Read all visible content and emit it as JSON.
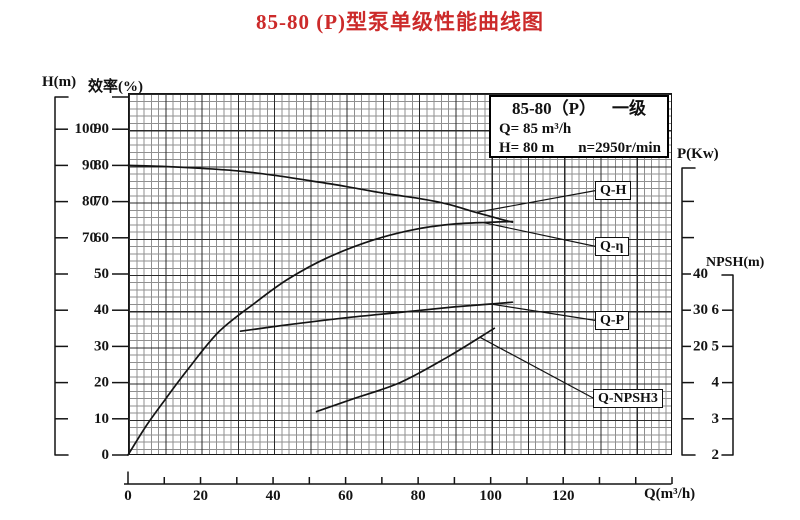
{
  "title": "85-80 (P)型泵单级性能曲线图",
  "theme": {
    "title_color": "#cc2a2a",
    "line_color": "#141414",
    "grid_minor_color": "#8f8f8f",
    "grid_major_color": "#2a2a2a"
  },
  "info_box": {
    "line1_left": "85-80（P）",
    "line1_right": "一级",
    "line2": "Q= 85 m³/h",
    "line3_left": "H= 80 m",
    "line3_right": "n=2950r/min"
  },
  "axes": {
    "h": {
      "label": "H(m)",
      "ticks": [
        "100",
        "90",
        "80",
        "70"
      ]
    },
    "eff": {
      "label": "效率(%)",
      "ticks": [
        "90",
        "80",
        "70",
        "60",
        "50",
        "40",
        "30",
        "20",
        "10",
        "0"
      ]
    },
    "p": {
      "label": "P(Kw)",
      "ticks": [
        "40",
        "30",
        "20"
      ]
    },
    "npsh": {
      "label": "NPSH(m)",
      "ticks": [
        "6",
        "5",
        "4",
        "3",
        "2"
      ]
    },
    "q": {
      "label": "Q(m³/h)",
      "ticks": [
        "0",
        "20",
        "40",
        "60",
        "80",
        "100",
        "120"
      ]
    }
  },
  "curve_labels": [
    {
      "text": "Q-H"
    },
    {
      "text": "Q-η"
    },
    {
      "text": "Q-P"
    },
    {
      "text": "Q-NPSH3"
    }
  ],
  "chart_data": {
    "type": "line",
    "title": "85-80 (P)型泵单级性能曲线图",
    "x_axis": {
      "label": "Q(m³/h)",
      "range": [
        0,
        150
      ],
      "tick_step": 10,
      "labeled_every": 20
    },
    "y_axes": [
      {
        "name": "H",
        "label": "H(m)",
        "labeled_ticks": [
          100,
          90,
          80,
          70
        ]
      },
      {
        "name": "eff",
        "label": "效率(%)",
        "labeled_ticks": [
          90,
          80,
          70,
          60,
          50,
          40,
          30,
          20,
          10,
          0
        ]
      },
      {
        "name": "P",
        "label": "P(Kw)",
        "labeled_ticks": [
          40,
          30,
          20
        ]
      },
      {
        "name": "NPSH",
        "label": "NPSH(m)",
        "labeled_ticks": [
          6,
          5,
          4,
          3,
          2
        ]
      }
    ],
    "rated_point": {
      "Q": 85,
      "H": 80,
      "n": "2950r/min",
      "stage": "一级"
    },
    "grid": "fine mesh, major every 10 flow units / 10 value units",
    "legend_position": "inline boxed labels with leader lines",
    "series": [
      {
        "name": "Q-H",
        "axis": "H",
        "points": [
          [
            0,
            90
          ],
          [
            10,
            89.7
          ],
          [
            20,
            89.2
          ],
          [
            30,
            88.5
          ],
          [
            40,
            87.3
          ],
          [
            50,
            85.8
          ],
          [
            60,
            84.2
          ],
          [
            70,
            82.4
          ],
          [
            80,
            80.9
          ],
          [
            85,
            80
          ],
          [
            90,
            78.8
          ],
          [
            95,
            77.3
          ],
          [
            100,
            75.9
          ],
          [
            106,
            74.3
          ]
        ]
      },
      {
        "name": "Q-η",
        "axis": "eff",
        "points": [
          [
            0,
            0
          ],
          [
            5,
            8
          ],
          [
            10,
            15
          ],
          [
            16,
            23
          ],
          [
            25,
            34
          ],
          [
            35,
            42
          ],
          [
            44,
            48.5
          ],
          [
            55,
            54.5
          ],
          [
            68,
            59.5
          ],
          [
            80,
            62.5
          ],
          [
            90,
            63.8
          ],
          [
            100,
            64.3
          ],
          [
            106,
            64.5
          ]
        ]
      },
      {
        "name": "Q-P",
        "axis": "P",
        "points": [
          [
            31,
            24.2
          ],
          [
            45,
            26.1
          ],
          [
            60,
            27.9
          ],
          [
            75,
            29.4
          ],
          [
            90,
            30.9
          ],
          [
            100,
            31.7
          ],
          [
            106,
            32.2
          ]
        ]
      },
      {
        "name": "Q-NPSH3",
        "axis": "NPSH",
        "points": [
          [
            52,
            3.2
          ],
          [
            62,
            3.55
          ],
          [
            75,
            4.0
          ],
          [
            88,
            4.7
          ],
          [
            101,
            5.5
          ]
        ]
      }
    ]
  }
}
